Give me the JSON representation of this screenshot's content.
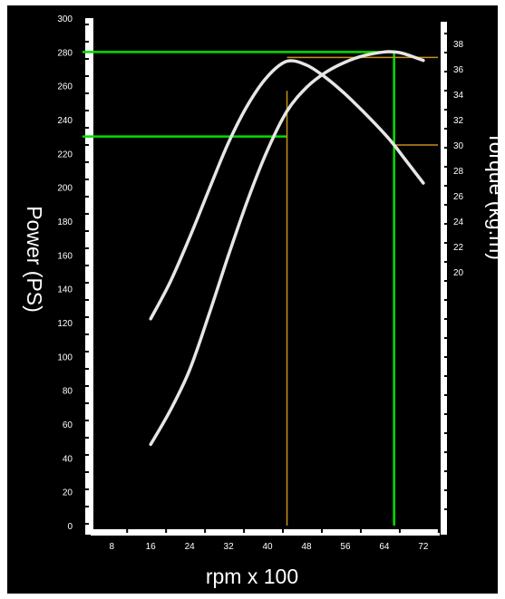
{
  "chart_data": {
    "type": "line",
    "title": "",
    "xlabel": "rpm x 100",
    "ylabel_left": "Power (PS)",
    "ylabel_right": "Torque (kg.m)",
    "x_ticks": [
      "8",
      "16",
      "24",
      "32",
      "40",
      "48",
      "56",
      "64",
      "72"
    ],
    "x_tick_values": [
      8,
      16,
      24,
      32,
      40,
      48,
      56,
      64,
      72
    ],
    "xlim": [
      2,
      75
    ],
    "y_left_ticks": [
      "0",
      "20",
      "40",
      "60",
      "80",
      "100",
      "120",
      "140",
      "160",
      "180",
      "200",
      "220",
      "240",
      "260",
      "280",
      "300"
    ],
    "y_left_tick_values": [
      0,
      20,
      40,
      60,
      80,
      100,
      120,
      140,
      160,
      180,
      200,
      220,
      240,
      260,
      280,
      300
    ],
    "ylim_left": [
      0,
      300
    ],
    "y_right_ticks": [
      "20",
      "22",
      "24",
      "26",
      "28",
      "30",
      "32",
      "34",
      "36",
      "38"
    ],
    "y_right_tick_values": [
      20,
      22,
      24,
      26,
      28,
      30,
      32,
      34,
      36,
      38
    ],
    "ylim_right": [
      0,
      40
    ],
    "grid": false,
    "series": [
      {
        "axis": "left",
        "color": "#e6e6e6",
        "x": [
          16,
          20,
          24,
          28,
          32,
          36,
          40,
          44,
          48,
          52,
          56,
          60,
          64,
          66,
          68,
          72
        ],
        "y": [
          48,
          68,
          92,
          125,
          160,
          193,
          222,
          245,
          259,
          268,
          274,
          278,
          280,
          280,
          279,
          275
        ]
      },
      {
        "axis": "right",
        "color": "#e6e6e6",
        "x": [
          16,
          20,
          24,
          28,
          32,
          36,
          40,
          44,
          48,
          52,
          56,
          60,
          64,
          66,
          68,
          72
        ],
        "y": [
          16.3,
          19.2,
          22.7,
          26.5,
          30.2,
          33.2,
          35.4,
          36.6,
          36.3,
          35.3,
          34.0,
          32.5,
          30.9,
          30.0,
          29.0,
          27.0
        ]
      }
    ],
    "reference_lines": [
      {
        "color": "#00e000",
        "kind": "h",
        "axis": "left",
        "value": 280,
        "from_x": 2,
        "to_x": 66
      },
      {
        "color": "#00e000",
        "kind": "v",
        "value": 66,
        "from_y": 0,
        "to_y": 280
      },
      {
        "color": "#00e000",
        "kind": "h",
        "axis": "left",
        "value": 230,
        "from_x": 2,
        "to_x": 44
      },
      {
        "color": "#c89018",
        "kind": "v",
        "value": 44,
        "from_y": 0,
        "to_y": 257
      },
      {
        "color": "#c89018",
        "kind": "h",
        "axis": "right",
        "value": 36.9,
        "from_x": 44,
        "to_x": 75
      },
      {
        "color": "#c89018",
        "kind": "h",
        "axis": "right",
        "value": 30.0,
        "from_x": 66,
        "to_x": 75
      }
    ]
  }
}
